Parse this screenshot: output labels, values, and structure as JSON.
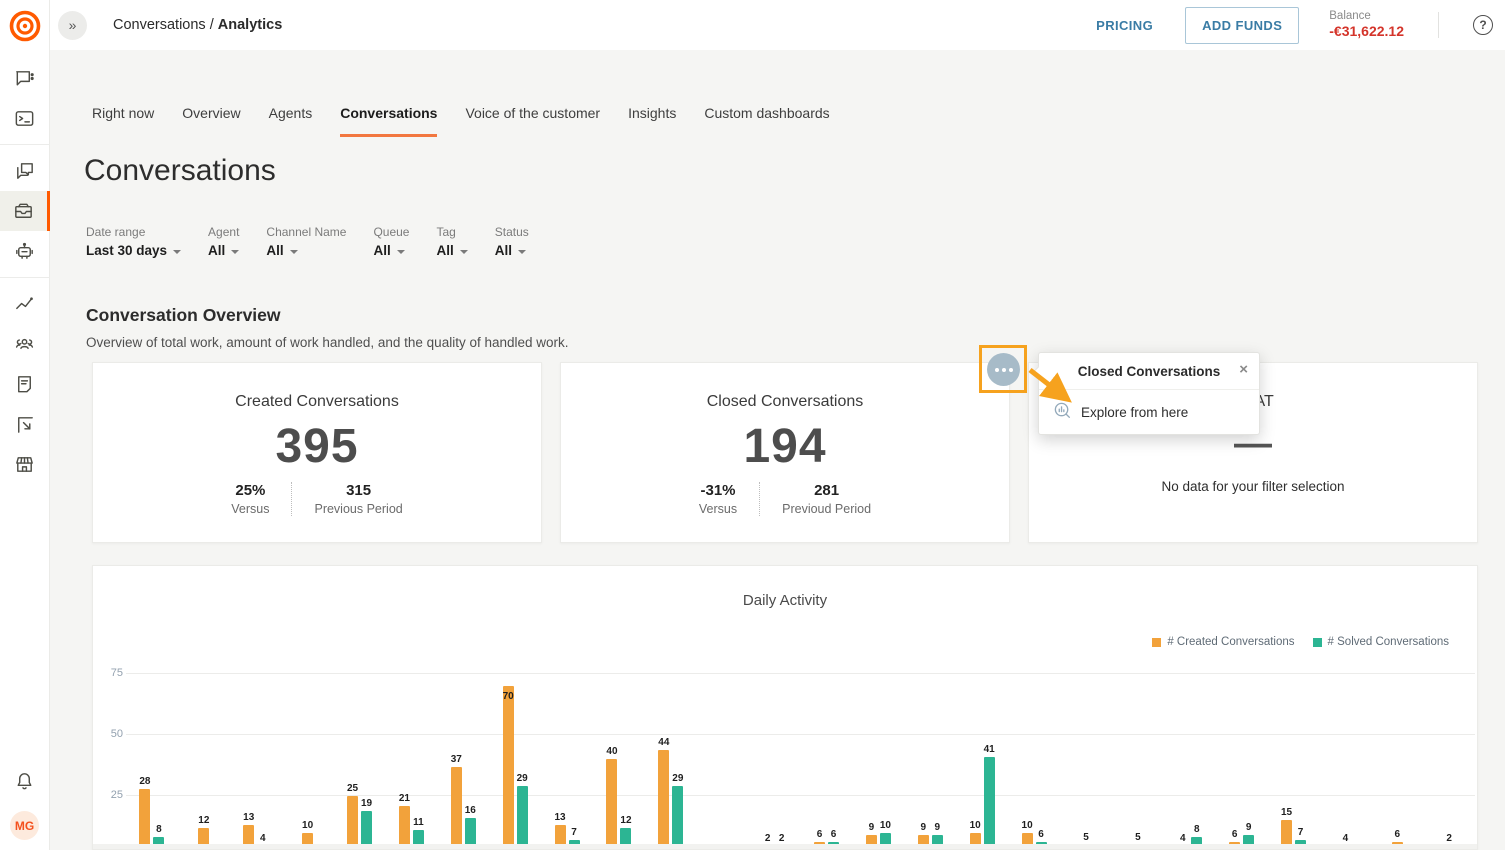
{
  "topbar": {
    "breadcrumb_prefix": "Conversations / ",
    "breadcrumb_current": "Analytics",
    "pricing_label": "PRICING",
    "add_funds_label": "ADD FUNDS",
    "balance_label": "Balance",
    "balance_value": "-€31,622.12"
  },
  "sidebar": {
    "groups": [
      {
        "items": [
          {
            "icon": "chat-icon"
          },
          {
            "icon": "terminal-icon"
          }
        ]
      },
      {
        "items": [
          {
            "icon": "forum-icon"
          },
          {
            "icon": "inbox-icon",
            "active": true
          },
          {
            "icon": "bot-icon"
          }
        ]
      },
      {
        "items": [
          {
            "icon": "analytics-icon"
          },
          {
            "icon": "people-icon"
          },
          {
            "icon": "knowledge-icon"
          },
          {
            "icon": "flag-icon"
          },
          {
            "icon": "storefront-icon"
          }
        ]
      }
    ],
    "avatar_initials": "MG"
  },
  "tabs": [
    {
      "label": "Right now"
    },
    {
      "label": "Overview"
    },
    {
      "label": "Agents"
    },
    {
      "label": "Conversations",
      "active": true
    },
    {
      "label": "Voice of the customer"
    },
    {
      "label": "Insights"
    },
    {
      "label": "Custom dashboards"
    }
  ],
  "page": {
    "title": "Conversations"
  },
  "filters": [
    {
      "label": "Date range",
      "value": "Last 30 days"
    },
    {
      "label": "Agent",
      "value": "All"
    },
    {
      "label": "Channel Name",
      "value": "All"
    },
    {
      "label": "Queue",
      "value": "All"
    },
    {
      "label": "Tag",
      "value": "All"
    },
    {
      "label": "Status",
      "value": "All"
    }
  ],
  "section": {
    "title": "Conversation Overview",
    "subtitle": "Overview of total work, amount of work handled, and the quality of handled work."
  },
  "cards": [
    {
      "title": "Created Conversations",
      "value": "395",
      "change": "25%",
      "change_label": "Versus",
      "previous": "315",
      "previous_label": "Previous Period"
    },
    {
      "title": "Closed Conversations",
      "value": "194",
      "change": "-31%",
      "change_label": "Versus",
      "previous": "281",
      "previous_label": "Previoud Period"
    },
    {
      "title": "CSAT",
      "placeholder": "—",
      "no_data": "No data for your filter selection"
    }
  ],
  "context_menu": {
    "title": "Closed Conversations",
    "close_label": "×",
    "item_label": "Explore from here",
    "item_icon": "explore-chart-icon"
  },
  "chart_data": {
    "type": "bar",
    "title": "Daily Activity",
    "yticks": [
      25,
      50,
      75
    ],
    "ylim": [
      0,
      80
    ],
    "grid": true,
    "legend_position": "top-right",
    "legend": [
      {
        "name": "# Created Conversations",
        "color": "#f2a23b"
      },
      {
        "name": "# Solved Conversations",
        "color": "#2cb593"
      }
    ],
    "series": [
      {
        "name": "# Created Conversations",
        "values": [
          28,
          12,
          13,
          10,
          25,
          21,
          37,
          70,
          13,
          40,
          44,
          null,
          2,
          6,
          9,
          9,
          10,
          10,
          5,
          5,
          4,
          6,
          15,
          4,
          6,
          2
        ]
      },
      {
        "name": "# Solved Conversations",
        "values": [
          8,
          null,
          4,
          null,
          19,
          11,
          16,
          29,
          7,
          12,
          29,
          null,
          2,
          6,
          10,
          9,
          41,
          6,
          null,
          null,
          8,
          9,
          7,
          null,
          null,
          null
        ]
      }
    ]
  },
  "colors": {
    "brand_orange": "#ff5a00",
    "bar_created": "#f2a23b",
    "bar_solved": "#2cb593",
    "tab_underline": "#f2773f",
    "balance_red": "#d4342a",
    "link_blue": "#3a7ca5",
    "highlight_orange": "#f6a21e"
  }
}
